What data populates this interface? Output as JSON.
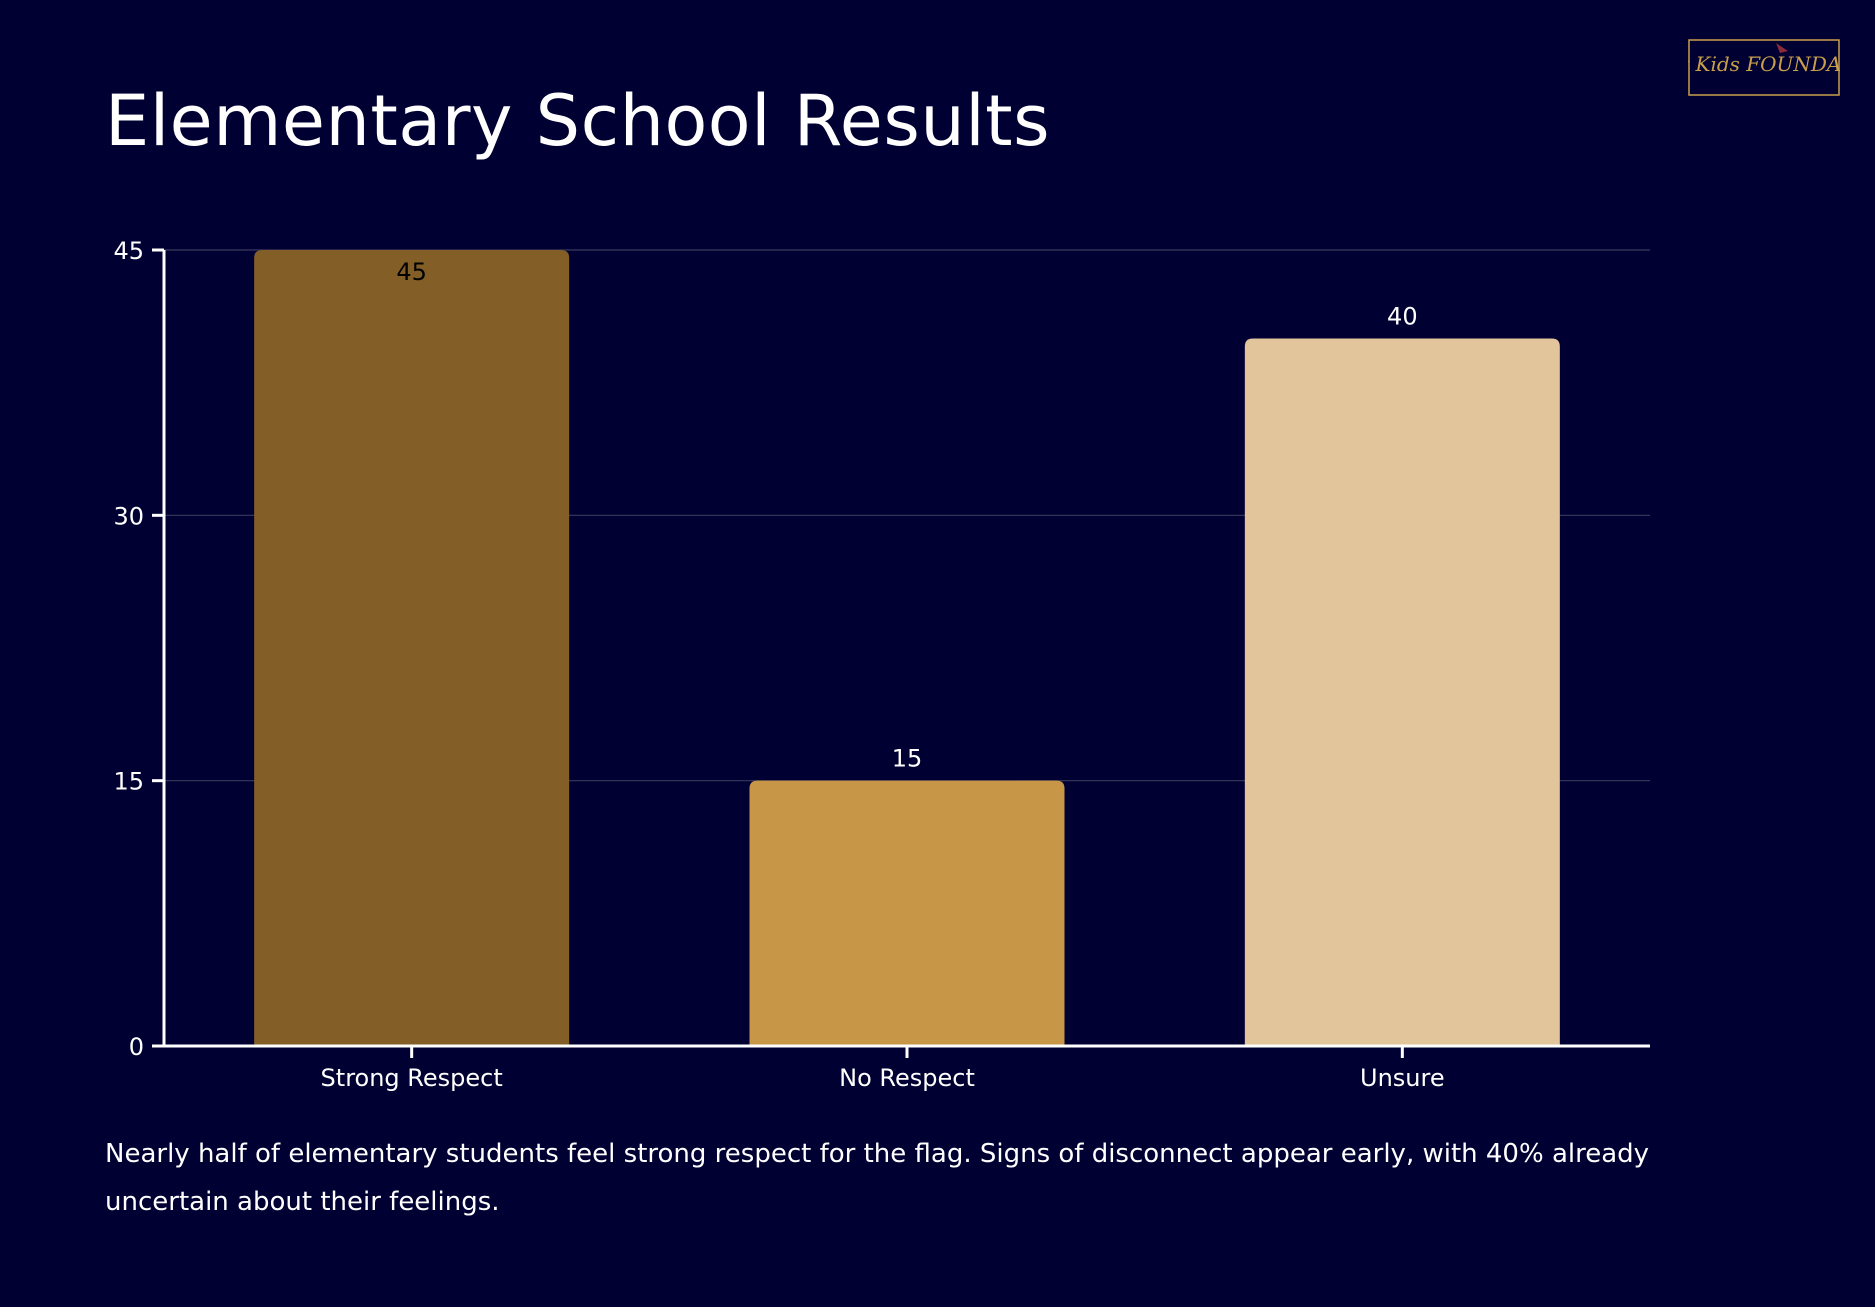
{
  "page": {
    "title": "Elementary School Results",
    "caption": "Nearly half of elementary students feel strong respect for the flag. Signs of disconnect appear early, with 40% already uncertain about their feelings."
  },
  "logo": {
    "icon": "patriot-kids-foundation-logo",
    "text": "Patriot Kids FOUNDATION",
    "color": "#c9a04a"
  },
  "colors": {
    "background": "#000033",
    "axis": "#ffffff",
    "grid": "#3a3a5c",
    "text": "#ffffff"
  },
  "chart_data": {
    "type": "bar",
    "categories": [
      "Strong Respect",
      "No Respect",
      "Unsure"
    ],
    "values": [
      45,
      15,
      40
    ],
    "data_labels": [
      "45",
      "15",
      "40"
    ],
    "colors": [
      "#835f27",
      "#c89647",
      "#e2c59b"
    ],
    "label_colors": [
      "#000000",
      "#ffffff",
      "#ffffff"
    ],
    "ylim": [
      0,
      45
    ],
    "yticks": [
      0,
      15,
      30,
      45
    ],
    "ytick_labels": [
      "0",
      "15",
      "30",
      "45"
    ],
    "grid": true,
    "legend": "none"
  }
}
